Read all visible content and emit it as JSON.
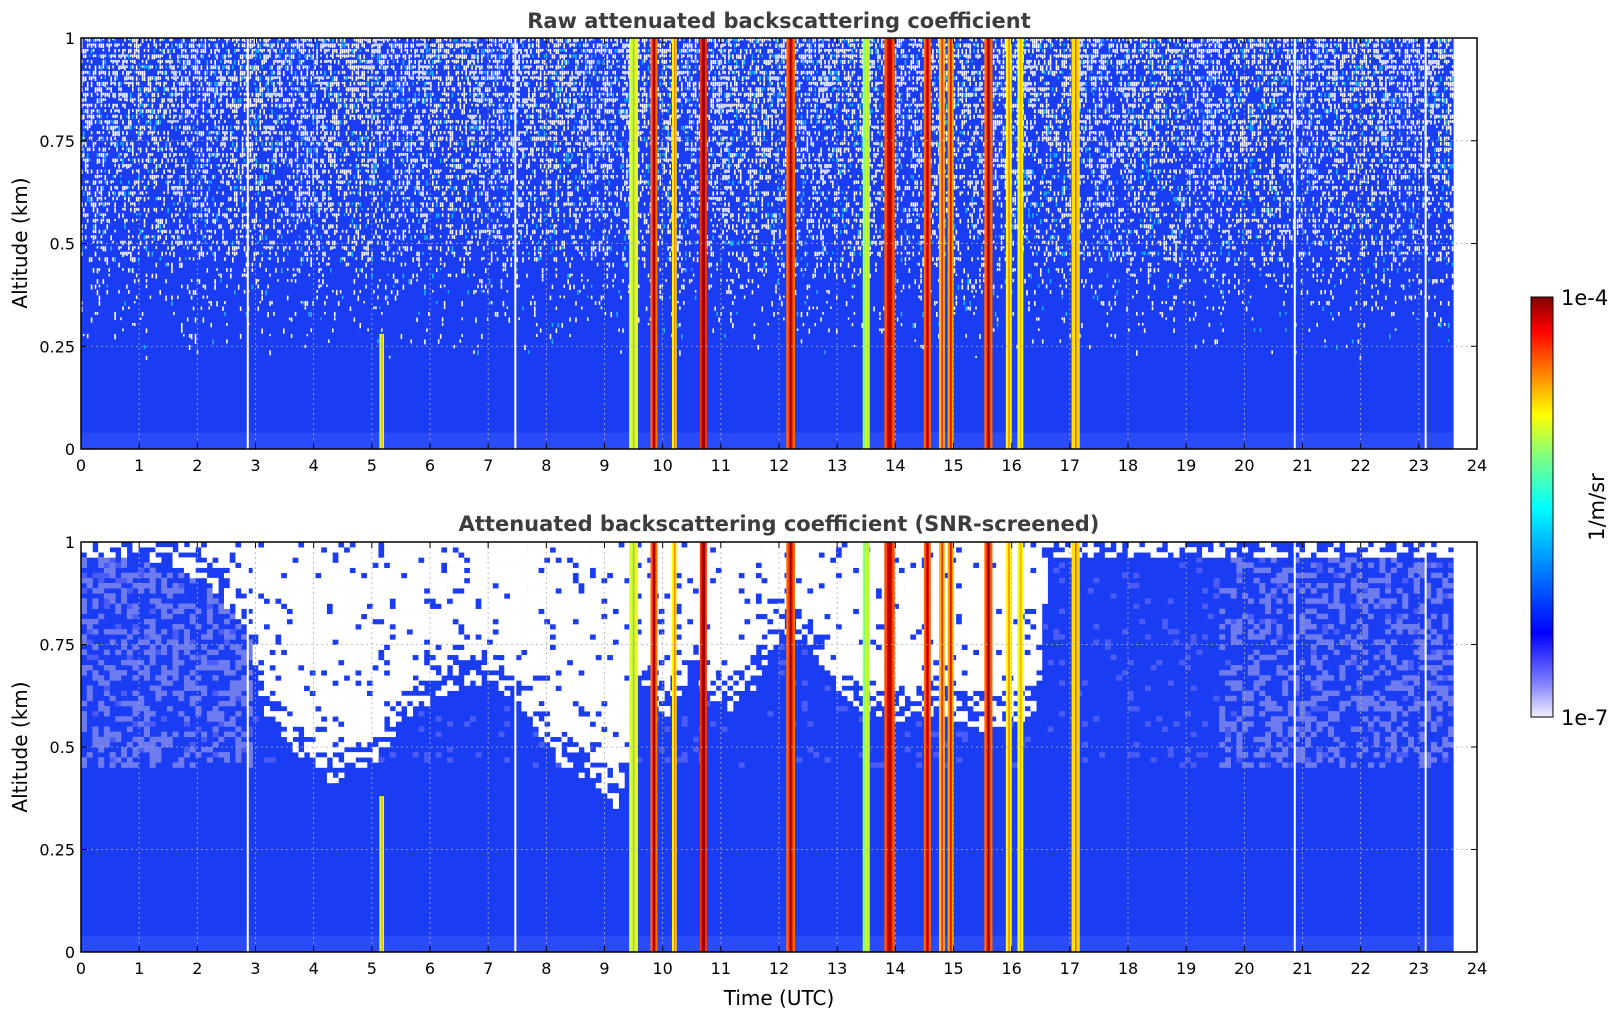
{
  "chart_data": [
    {
      "type": "heatmap",
      "title": "Raw attenuated backscattering coefficient",
      "xlabel": "",
      "ylabel": "Altitude (km)",
      "xlim": [
        0,
        24
      ],
      "ylim": [
        0,
        1
      ],
      "x_ticks": [
        "0",
        "1",
        "2",
        "3",
        "4",
        "5",
        "6",
        "7",
        "8",
        "9",
        "10",
        "11",
        "12",
        "13",
        "14",
        "15",
        "16",
        "17",
        "18",
        "19",
        "20",
        "21",
        "22",
        "23",
        "24"
      ],
      "y_ticks": [
        "0",
        "0.25",
        "0.5",
        "0.75",
        "1"
      ],
      "grid": true,
      "data_end_time": 23.6,
      "noise_start_altitude": 0.45,
      "cloud_events": [
        {
          "time": 5.17,
          "width": 0.08,
          "top": 0.28,
          "level": 0.55
        },
        {
          "time": 9.5,
          "width": 0.15,
          "top": 1.0,
          "level": 0.55
        },
        {
          "time": 9.85,
          "width": 0.12,
          "top": 1.0,
          "level": 0.85
        },
        {
          "time": 10.2,
          "width": 0.08,
          "top": 1.0,
          "level": 0.6
        },
        {
          "time": 10.7,
          "width": 0.12,
          "top": 1.0,
          "level": 0.95
        },
        {
          "time": 12.2,
          "width": 0.15,
          "top": 1.0,
          "level": 0.85
        },
        {
          "time": 13.5,
          "width": 0.12,
          "top": 1.0,
          "level": 0.45
        },
        {
          "time": 13.9,
          "width": 0.18,
          "top": 1.0,
          "level": 0.9
        },
        {
          "time": 14.55,
          "width": 0.12,
          "top": 1.0,
          "level": 0.85
        },
        {
          "time": 14.8,
          "width": 0.1,
          "top": 1.0,
          "level": 0.7
        },
        {
          "time": 14.95,
          "width": 0.1,
          "top": 1.0,
          "level": 0.75
        },
        {
          "time": 15.6,
          "width": 0.14,
          "top": 1.0,
          "level": 0.85
        },
        {
          "time": 15.95,
          "width": 0.1,
          "top": 1.0,
          "level": 0.6
        },
        {
          "time": 16.15,
          "width": 0.1,
          "top": 1.0,
          "level": 0.55
        },
        {
          "time": 17.1,
          "width": 0.14,
          "top": 1.0,
          "level": 0.65
        }
      ],
      "gaps": [
        2.85,
        7.45,
        20.85,
        23.1
      ]
    },
    {
      "type": "heatmap",
      "title": "Attenuated backscattering coefficient (SNR-screened)",
      "xlabel": "Time (UTC)",
      "ylabel": "Altitude (km)",
      "xlim": [
        0,
        24
      ],
      "ylim": [
        0,
        1
      ],
      "x_ticks": [
        "0",
        "1",
        "2",
        "3",
        "4",
        "5",
        "6",
        "7",
        "8",
        "9",
        "10",
        "11",
        "12",
        "13",
        "14",
        "15",
        "16",
        "17",
        "18",
        "19",
        "20",
        "21",
        "22",
        "23",
        "24"
      ],
      "y_ticks": [
        "0",
        "0.25",
        "0.5",
        "0.75",
        "1"
      ],
      "grid": true,
      "data_end_time": 23.6,
      "screen_profile": [
        [
          0,
          1.0
        ],
        [
          1,
          1.0
        ],
        [
          2,
          0.95
        ],
        [
          2.85,
          0.82
        ],
        [
          3.1,
          0.62
        ],
        [
          3.5,
          0.55
        ],
        [
          4.2,
          0.45
        ],
        [
          5.0,
          0.5
        ],
        [
          5.6,
          0.62
        ],
        [
          6.3,
          0.68
        ],
        [
          7.0,
          0.7
        ],
        [
          7.6,
          0.62
        ],
        [
          8.2,
          0.5
        ],
        [
          8.8,
          0.45
        ],
        [
          9.2,
          0.38
        ],
        [
          9.6,
          0.7
        ],
        [
          10.0,
          0.6
        ],
        [
          10.5,
          0.72
        ],
        [
          11.0,
          0.62
        ],
        [
          11.5,
          0.68
        ],
        [
          12.0,
          0.82
        ],
        [
          12.5,
          0.78
        ],
        [
          13.0,
          0.66
        ],
        [
          13.5,
          0.62
        ],
        [
          14.0,
          0.6
        ],
        [
          14.5,
          0.62
        ],
        [
          15.0,
          0.6
        ],
        [
          15.5,
          0.58
        ],
        [
          16.0,
          0.6
        ],
        [
          16.4,
          0.62
        ],
        [
          16.6,
          1.0
        ],
        [
          20.5,
          1.0
        ],
        [
          23.6,
          1.0
        ]
      ],
      "cloud_events": [
        {
          "time": 5.17,
          "width": 0.08,
          "top": 0.38,
          "level": 0.55
        },
        {
          "time": 9.5,
          "width": 0.15,
          "top": 1.0,
          "level": 0.55
        },
        {
          "time": 9.85,
          "width": 0.12,
          "top": 1.0,
          "level": 0.85
        },
        {
          "time": 10.2,
          "width": 0.08,
          "top": 1.0,
          "level": 0.6
        },
        {
          "time": 10.7,
          "width": 0.12,
          "top": 1.0,
          "level": 0.95
        },
        {
          "time": 12.2,
          "width": 0.15,
          "top": 1.0,
          "level": 0.85
        },
        {
          "time": 13.5,
          "width": 0.12,
          "top": 1.0,
          "level": 0.45
        },
        {
          "time": 13.9,
          "width": 0.18,
          "top": 1.0,
          "level": 0.9
        },
        {
          "time": 14.55,
          "width": 0.12,
          "top": 1.0,
          "level": 0.85
        },
        {
          "time": 14.8,
          "width": 0.1,
          "top": 1.0,
          "level": 0.7
        },
        {
          "time": 14.95,
          "width": 0.1,
          "top": 1.0,
          "level": 0.75
        },
        {
          "time": 15.6,
          "width": 0.14,
          "top": 1.0,
          "level": 0.85
        },
        {
          "time": 15.95,
          "width": 0.1,
          "top": 1.0,
          "level": 0.6
        },
        {
          "time": 16.15,
          "width": 0.1,
          "top": 1.0,
          "level": 0.55
        },
        {
          "time": 17.1,
          "width": 0.14,
          "top": 1.0,
          "level": 0.65
        }
      ],
      "gaps": [
        2.85,
        7.45,
        20.85,
        23.1
      ]
    }
  ],
  "colorbar": {
    "label": "1/m/sr",
    "max_label": "1e-4",
    "min_label": "1e-7",
    "scale": "log",
    "colormap": "jet",
    "colors": [
      "#ececfb",
      "#0000ff",
      "#00ffff",
      "#ffff00",
      "#ff0000",
      "#800000"
    ]
  },
  "colors": {
    "background_blue": "#1a3cf2",
    "grid": "#b0b0b0",
    "title": "#3d3d3d"
  }
}
